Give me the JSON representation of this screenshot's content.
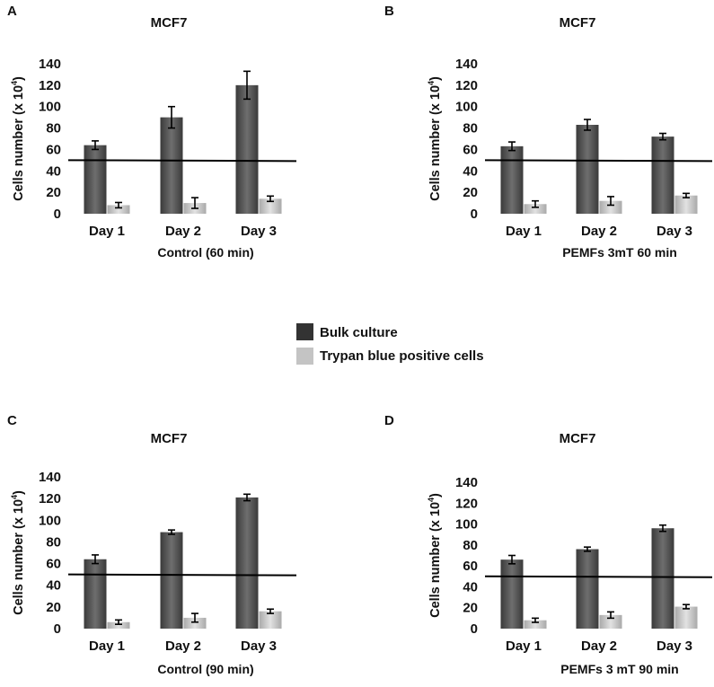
{
  "colors": {
    "bulk": "#4a4a4a",
    "trypan": "#c4c4c4",
    "axis": "#000000"
  },
  "legend": {
    "bulk": "Bulk culture",
    "trypan": "Trypan blue positive cells"
  },
  "chart_data": [
    {
      "type": "bar",
      "panel": "A",
      "title": "MCF7",
      "xlabel": "Control (60 min)",
      "ylabel": "Cells number (x 10",
      "ylabel_exp": "4",
      "ylabel_close": ")",
      "ylim": [
        0,
        140
      ],
      "yticks": [
        0,
        20,
        40,
        60,
        80,
        100,
        120,
        140
      ],
      "reference_line": 50,
      "categories": [
        "Day 1",
        "Day 2",
        "Day 3"
      ],
      "series": [
        {
          "name": "Bulk culture",
          "values": [
            64,
            90,
            120
          ],
          "errors": [
            4,
            10,
            13
          ]
        },
        {
          "name": "Trypan blue positive cells",
          "values": [
            8,
            10,
            14
          ],
          "errors": [
            2.5,
            5,
            2.5
          ]
        }
      ]
    },
    {
      "type": "bar",
      "panel": "B",
      "title": "MCF7",
      "xlabel": "PEMFs 3mT 60 min",
      "ylabel": "Cells number (x 10",
      "ylabel_exp": "4",
      "ylabel_close": ")",
      "ylim": [
        0,
        140
      ],
      "yticks": [
        0,
        20,
        40,
        60,
        80,
        100,
        120,
        140
      ],
      "reference_line": 50,
      "categories": [
        "Day 1",
        "Day 2",
        "Day 3"
      ],
      "series": [
        {
          "name": "Bulk culture",
          "values": [
            63,
            83,
            72
          ],
          "errors": [
            4,
            5,
            3
          ]
        },
        {
          "name": "Trypan blue positive cells",
          "values": [
            9,
            12,
            17
          ],
          "errors": [
            3,
            4,
            2
          ]
        }
      ]
    },
    {
      "type": "bar",
      "panel": "C",
      "title": "MCF7",
      "xlabel": "Control (90 min)",
      "ylabel": "Cells number (x 10",
      "ylabel_exp": "4",
      "ylabel_close": ")",
      "ylim": [
        0,
        140
      ],
      "yticks": [
        0,
        20,
        40,
        60,
        80,
        100,
        120,
        140
      ],
      "reference_line": 50,
      "categories": [
        "Day 1",
        "Day 2",
        "Day 3"
      ],
      "series": [
        {
          "name": "Bulk culture",
          "values": [
            64,
            89,
            121
          ],
          "errors": [
            4,
            2,
            3
          ]
        },
        {
          "name": "Trypan blue positive cells",
          "values": [
            6,
            10,
            16
          ],
          "errors": [
            2,
            4,
            2
          ]
        }
      ]
    },
    {
      "type": "bar",
      "panel": "D",
      "title": "MCF7",
      "xlabel": "PEMFs 3 mT 90 min",
      "ylabel": "Cells number (x 10",
      "ylabel_exp": "4",
      "ylabel_close": ")",
      "ylim": [
        0,
        140
      ],
      "yticks": [
        0,
        20,
        40,
        60,
        80,
        100,
        120,
        140
      ],
      "reference_line": 50,
      "categories": [
        "Day 1",
        "Day 2",
        "Day 3"
      ],
      "series": [
        {
          "name": "Bulk culture",
          "values": [
            66,
            76,
            96
          ],
          "errors": [
            4,
            2,
            3
          ]
        },
        {
          "name": "Trypan blue positive cells",
          "values": [
            8,
            13,
            21
          ],
          "errors": [
            2,
            3,
            2
          ]
        }
      ]
    }
  ]
}
